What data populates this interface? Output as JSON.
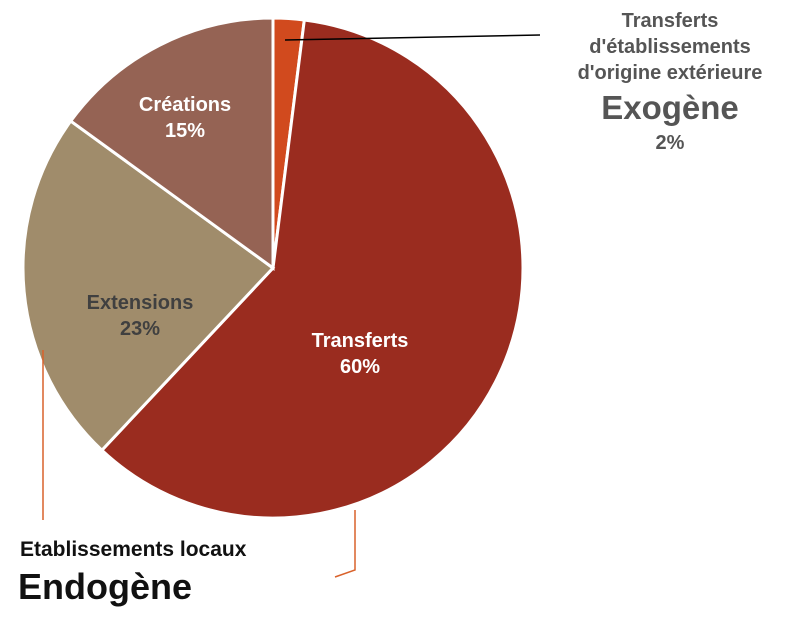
{
  "chart_data": {
    "type": "pie",
    "categories": [
      "Transferts d'établissements d'origine extérieure",
      "Transferts",
      "Extensions",
      "Créations"
    ],
    "values": [
      2,
      60,
      23,
      15
    ],
    "value_labels": [
      "2%",
      "60%",
      "23%",
      "15%"
    ],
    "colors": [
      "#d14a1e",
      "#9a2c1f",
      "#a08c6b",
      "#956354"
    ],
    "annotations": [
      "Exogène",
      "Etablissements locaux",
      "Endogène"
    ]
  }
}
